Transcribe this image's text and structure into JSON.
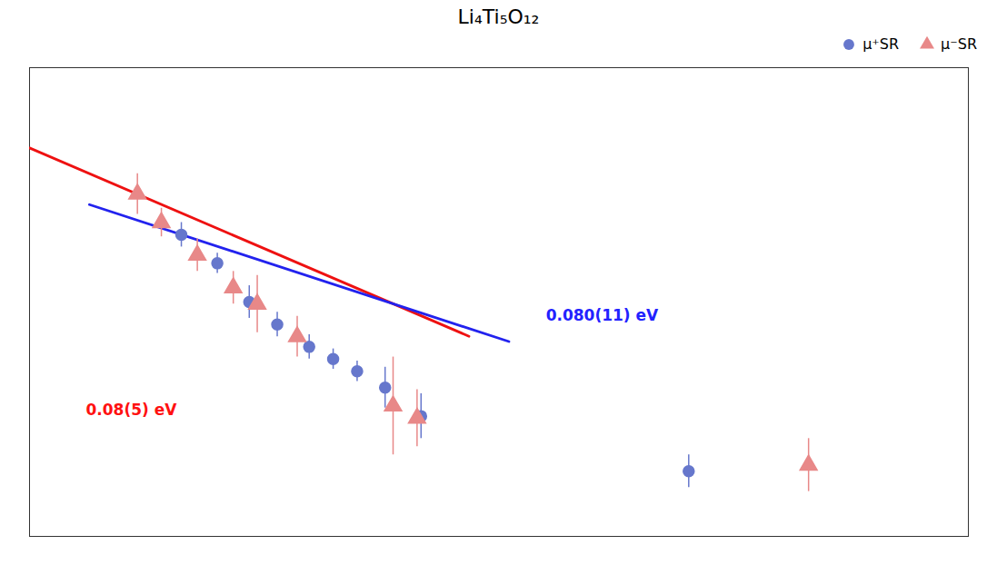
{
  "chart_data": {
    "type": "scatter",
    "title": "Li₄Ti₅O₁₂",
    "xlim": [
      1.55,
      3.9
    ],
    "ylim": [
      0,
      11.5
    ],
    "tick_labels": false,
    "grid": false,
    "legend": "upper right",
    "series": [
      {
        "type": "line",
        "line_style": "solid",
        "color": "#ee1111",
        "x": [
          1.55,
          2.65
        ],
        "values": [
          9.53,
          4.91
        ]
      },
      {
        "type": "line",
        "line_style": "solid",
        "color": "#2222ee",
        "x": [
          1.7,
          2.75
        ],
        "values": [
          8.14,
          4.78
        ]
      },
      {
        "name": "μ⁺SR",
        "type": "scatter",
        "marker": "circle",
        "color": "#6677cc",
        "x": [
          1.93,
          2.02,
          2.1,
          2.17,
          2.25,
          2.31,
          2.37,
          2.44,
          2.53,
          3.2
        ],
        "values": [
          7.4,
          6.7,
          5.75,
          5.2,
          4.65,
          4.35,
          4.05,
          3.65,
          2.95,
          1.6
        ],
        "yerr": [
          0.3,
          0.25,
          0.4,
          0.3,
          0.3,
          0.25,
          0.25,
          0.5,
          0.55,
          0.4
        ]
      },
      {
        "name": "μ⁻SR",
        "type": "scatter",
        "marker": "triangle",
        "color": "#e88888",
        "x": [
          1.82,
          1.88,
          1.97,
          2.06,
          2.12,
          2.22,
          2.46,
          2.52,
          3.5
        ],
        "values": [
          8.4,
          7.7,
          6.9,
          6.1,
          5.7,
          4.9,
          3.2,
          2.9,
          1.75
        ],
        "yerr": [
          0.5,
          0.35,
          0.4,
          0.4,
          0.7,
          0.5,
          1.2,
          0.7,
          0.65
        ]
      }
    ],
    "annotations": [
      {
        "text": "0.080(11) eV",
        "color": "#2222ff"
      },
      {
        "text": "0.08(5) eV",
        "color": "#ff1111"
      }
    ]
  }
}
